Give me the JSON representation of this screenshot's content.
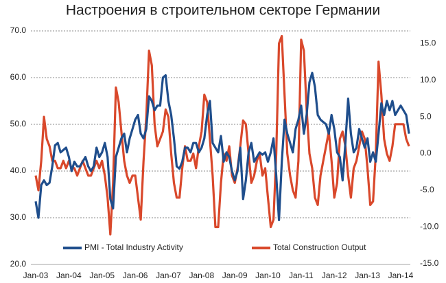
{
  "chart_data": {
    "type": "line",
    "title": "Настроения в строительном секторе Германии",
    "categories": [
      "Jan-03",
      null,
      null,
      null,
      null,
      null,
      null,
      null,
      null,
      null,
      null,
      null,
      "Jan-04",
      null,
      null,
      null,
      null,
      null,
      null,
      null,
      null,
      null,
      null,
      null,
      "Jan-05",
      null,
      null,
      null,
      null,
      null,
      null,
      null,
      null,
      null,
      null,
      null,
      "Jan-06",
      null,
      null,
      null,
      null,
      null,
      null,
      null,
      null,
      null,
      null,
      null,
      "Jan-07",
      null,
      null,
      null,
      null,
      null,
      null,
      null,
      null,
      null,
      null,
      null,
      "Jan-08",
      null,
      null,
      null,
      null,
      null,
      null,
      null,
      null,
      null,
      null,
      null,
      "Jan-09",
      null,
      null,
      null,
      null,
      null,
      null,
      null,
      null,
      null,
      null,
      null,
      "Jan-10",
      null,
      null,
      null,
      null,
      null,
      null,
      null,
      null,
      null,
      null,
      null,
      "Jan-11",
      null,
      null,
      null,
      null,
      null,
      null,
      null,
      null,
      null,
      null,
      null,
      "Jan-12",
      null,
      null,
      null,
      null,
      null,
      null,
      null,
      null,
      null,
      null,
      null,
      "Jan-13",
      null,
      null,
      null,
      null,
      null,
      null,
      null,
      null,
      null,
      null,
      null,
      "Jan-14",
      null,
      null,
      null
    ],
    "series": [
      {
        "name": "PMI - Total Industry Activity",
        "color": "#1f4e8c",
        "values": [
          33.5,
          30,
          37,
          38,
          37,
          37.5,
          41,
          45.5,
          46,
          44,
          44.5,
          45,
          43,
          40,
          42,
          41,
          41,
          42,
          43,
          41,
          40,
          41,
          45,
          43,
          44,
          46,
          43,
          34,
          32,
          43,
          45,
          47,
          48,
          44,
          47,
          49,
          51,
          52,
          48,
          47,
          49,
          56,
          55,
          53,
          54,
          54,
          60,
          60.5,
          55,
          52,
          47,
          41,
          40.5,
          42,
          45,
          45,
          44,
          46,
          46,
          44,
          45,
          47,
          52,
          55,
          46,
          45,
          44,
          47.5,
          42,
          44,
          43,
          40,
          38,
          40,
          45,
          34,
          38,
          44,
          46,
          42,
          43,
          44,
          43.5,
          44,
          42,
          44,
          47,
          39,
          29.5,
          42,
          51,
          48,
          46,
          44,
          49,
          51,
          54,
          48,
          52,
          59,
          61,
          58,
          52,
          51,
          50.5,
          50,
          48,
          52,
          49,
          44,
          43,
          38,
          46,
          55.5,
          48,
          44,
          45,
          49,
          47,
          45,
          47,
          42,
          44,
          42,
          48,
          54.5,
          52,
          55,
          53,
          55,
          52,
          53,
          54,
          53,
          52,
          48
        ]
      },
      {
        "name": "Total Construction Output",
        "color": "#d9482b",
        "axis": "y2",
        "values": [
          -3,
          -5,
          -1,
          5,
          2,
          1,
          -1,
          -1,
          -2,
          -2,
          -1,
          -2,
          -1,
          -2,
          -2,
          -3,
          -2,
          -1,
          -2,
          -3,
          -3,
          -2,
          -1,
          -2,
          -1,
          -3,
          -6,
          -11,
          -4,
          9,
          7,
          3,
          -1,
          -3,
          -4,
          -3,
          -3,
          -6,
          -9,
          -1,
          5,
          14,
          12,
          4,
          1,
          2,
          3,
          6,
          5,
          0,
          -4,
          -6,
          -6,
          -2,
          1,
          -1,
          -1,
          0,
          -2,
          1,
          3,
          8,
          7,
          2,
          -3,
          -10,
          -10,
          -4,
          0,
          -1,
          1,
          -3,
          -4,
          -2,
          1,
          4.5,
          4,
          0,
          -4,
          -3,
          -1,
          0,
          -3,
          -2,
          -6,
          -10,
          -9,
          0,
          15,
          16,
          8,
          0,
          -3,
          -5,
          -6,
          -1,
          15.5,
          14,
          6,
          0,
          -2,
          -6,
          -7,
          -3,
          -1,
          1,
          3,
          -1,
          -6,
          -4,
          2,
          3,
          1,
          -3,
          -6,
          -2,
          -1,
          1,
          3,
          2,
          -2,
          -7,
          -6.5,
          0,
          12.5,
          8,
          2,
          0,
          -1,
          1,
          4,
          4,
          4,
          4,
          2,
          1
        ]
      }
    ],
    "ylim": [
      20,
      70
    ],
    "yticks": [
      {
        "value": 20,
        "label": "20.0"
      },
      {
        "value": 30,
        "label": "30.0"
      },
      {
        "value": 40,
        "label": "40.0"
      },
      {
        "value": 50,
        "label": "50.0"
      },
      {
        "value": 60,
        "label": "60.0"
      },
      {
        "value": 70,
        "label": "70.0"
      }
    ],
    "y2lim": [
      -15.1,
      16.7
    ],
    "y2ticks": [
      {
        "value": -15,
        "label": "-15.0"
      },
      {
        "value": -10,
        "label": "-10.0"
      },
      {
        "value": -5,
        "label": "-5.0"
      },
      {
        "value": 0,
        "label": "0.0"
      },
      {
        "value": 5,
        "label": "5.0"
      },
      {
        "value": 10,
        "label": "10.0"
      },
      {
        "value": 15,
        "label": "15.0"
      }
    ],
    "grid": true,
    "legend": "bottom"
  }
}
